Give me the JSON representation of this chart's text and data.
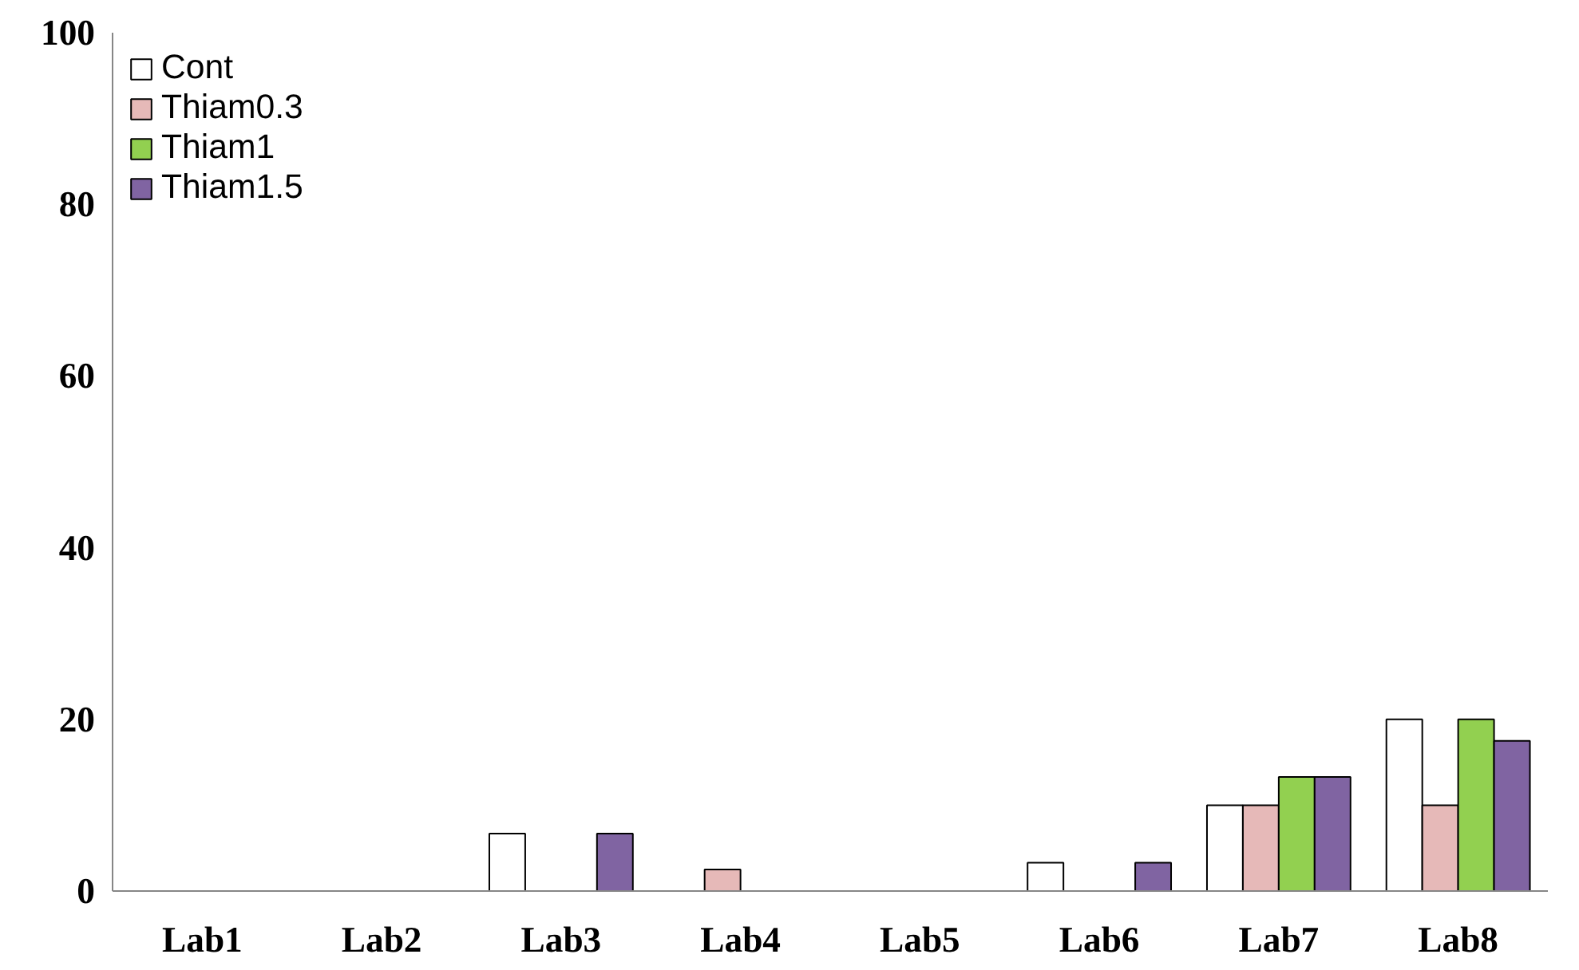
{
  "chart_data": {
    "type": "bar",
    "categories": [
      "Lab1",
      "Lab2",
      "Lab3",
      "Lab4",
      "Lab5",
      "Lab6",
      "Lab7",
      "Lab8"
    ],
    "series": [
      {
        "name": "Cont",
        "color": "#ffffff",
        "values": [
          0,
          0,
          6.7,
          0,
          0,
          3.3,
          10,
          20
        ]
      },
      {
        "name": "Thiam0.3",
        "color": "#e6b9b8",
        "values": [
          0,
          0,
          0,
          2.5,
          0,
          0,
          10,
          10
        ]
      },
      {
        "name": "Thiam1",
        "color": "#92d050",
        "values": [
          0,
          0,
          0,
          0,
          0,
          0,
          13.3,
          20
        ]
      },
      {
        "name": "Thiam1.5",
        "color": "#8064a2",
        "values": [
          0,
          0,
          6.7,
          0,
          0,
          3.3,
          13.3,
          17.5
        ]
      }
    ],
    "ylim": [
      0,
      100
    ],
    "yticks": [
      0,
      20,
      40,
      60,
      80,
      100
    ],
    "grid": false,
    "legend": "top left"
  }
}
